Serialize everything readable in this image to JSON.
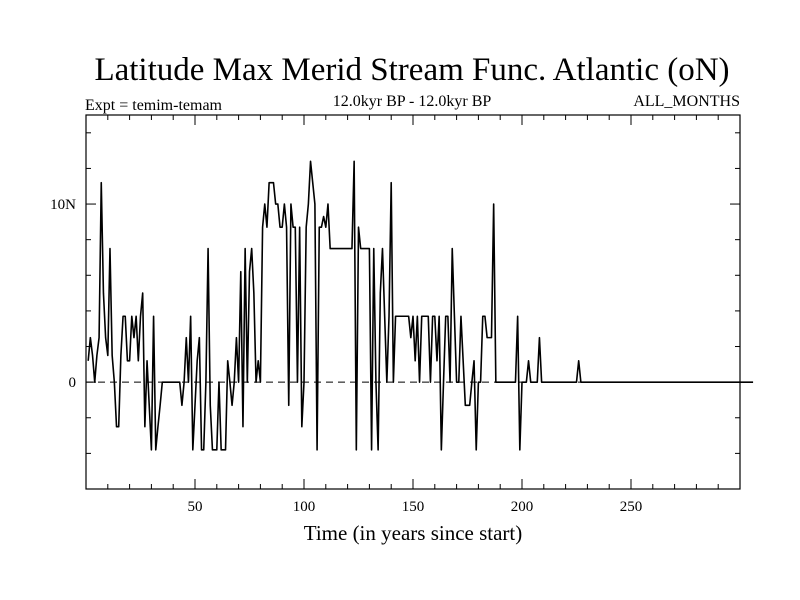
{
  "chart_data": {
    "type": "line",
    "title": "Latitude Max Merid Stream Func. Atlantic (oN)",
    "subtitle_left": "Expt = temim-temam",
    "subtitle_center": "12.0kyr BP - 12.0kyr BP",
    "subtitle_right": "ALL_MONTHS",
    "xlabel": "Time (in years since start)",
    "ylabel": "",
    "xlim": [
      0,
      300
    ],
    "ylim": [
      -6,
      15
    ],
    "x_ticks": [
      50,
      100,
      150,
      200,
      250
    ],
    "x_tick_labels": [
      "50",
      "100",
      "150",
      "200",
      "250"
    ],
    "y_ticks": [
      0,
      10
    ],
    "y_tick_labels": [
      "0",
      "10N"
    ],
    "reference_line": {
      "y": 0,
      "style": "dashed"
    },
    "series": [
      {
        "name": "temim-temam",
        "x_start": 1,
        "x_step": 1,
        "values": [
          1.2,
          2.5,
          1.5,
          0,
          1.5,
          2.5,
          11.2,
          5.0,
          2.5,
          1.5,
          7.5,
          1.5,
          0,
          -2.5,
          -2.5,
          1.5,
          3.7,
          3.7,
          1.2,
          1.2,
          3.7,
          2.5,
          3.7,
          1.2,
          3.7,
          5.0,
          -2.5,
          1.2,
          -1.3,
          -3.8,
          3.7,
          -3.8,
          -2.5,
          -1.3,
          0,
          0,
          0,
          0,
          0,
          0,
          0,
          0,
          0,
          -1.3,
          0,
          2.5,
          0,
          3.7,
          -3.8,
          -1.3,
          1.2,
          2.5,
          -3.8,
          -3.8,
          0,
          7.5,
          -1.3,
          -3.8,
          -3.8,
          -3.8,
          0,
          -3.8,
          -3.8,
          -3.8,
          1.2,
          0,
          -1.3,
          0,
          2.5,
          0,
          6.2,
          -2.5,
          7.5,
          0,
          6.2,
          7.5,
          5.0,
          0,
          1.2,
          0,
          8.7,
          10.0,
          8.7,
          11.2,
          11.2,
          11.2,
          10.0,
          10.0,
          8.7,
          8.7,
          10.0,
          8.7,
          -1.3,
          10.0,
          8.7,
          8.7,
          0,
          8.7,
          -2.5,
          0,
          8.7,
          10.0,
          12.4,
          11.2,
          10.0,
          -3.8,
          8.7,
          8.7,
          9.3,
          8.7,
          10.0,
          7.5,
          7.5,
          7.5,
          7.5,
          7.5,
          7.5,
          7.5,
          7.5,
          7.5,
          7.5,
          7.5,
          12.4,
          -3.8,
          8.7,
          7.5,
          7.5,
          7.5,
          7.5,
          7.5,
          -3.8,
          7.5,
          0,
          -3.8,
          5.0,
          7.5,
          3.7,
          0,
          3.7,
          11.2,
          0,
          3.7,
          3.7,
          3.7,
          3.7,
          3.7,
          3.7,
          3.7,
          2.5,
          3.7,
          1.2,
          3.7,
          0,
          3.7,
          3.7,
          3.7,
          3.7,
          0,
          3.7,
          3.7,
          1.2,
          3.7,
          -3.8,
          0,
          3.7,
          3.7,
          0,
          7.5,
          3.7,
          0,
          0,
          3.7,
          1.2,
          -1.3,
          -1.3,
          -1.3,
          0,
          1.2,
          -3.8,
          0,
          0,
          3.7,
          3.7,
          2.5,
          2.5,
          2.5,
          10.0,
          0,
          0,
          0,
          0,
          0,
          0,
          0,
          0,
          0,
          0,
          3.7,
          -3.8,
          0,
          0,
          0,
          1.2,
          0,
          0,
          0,
          0,
          2.5,
          0,
          0,
          0,
          0,
          0,
          0,
          0,
          0,
          0,
          0,
          0,
          0,
          0,
          0,
          0,
          0,
          0,
          1.2,
          0,
          0,
          0,
          0,
          0,
          0,
          0,
          0,
          0,
          0,
          0,
          0,
          0,
          0,
          0,
          0,
          0,
          0,
          0,
          0,
          0,
          0,
          0,
          0,
          0,
          0,
          0,
          0,
          0,
          0,
          0,
          0,
          0,
          0,
          0,
          0,
          0,
          0,
          0,
          0,
          0,
          0,
          0,
          0,
          0,
          0,
          0,
          0,
          0,
          0,
          0,
          0,
          0,
          0,
          0,
          0,
          0,
          0,
          0,
          0,
          0,
          0,
          0,
          0,
          0,
          0,
          0,
          0,
          0,
          0,
          0,
          0,
          0,
          0,
          0,
          0,
          0,
          0,
          0,
          0
        ]
      }
    ]
  }
}
